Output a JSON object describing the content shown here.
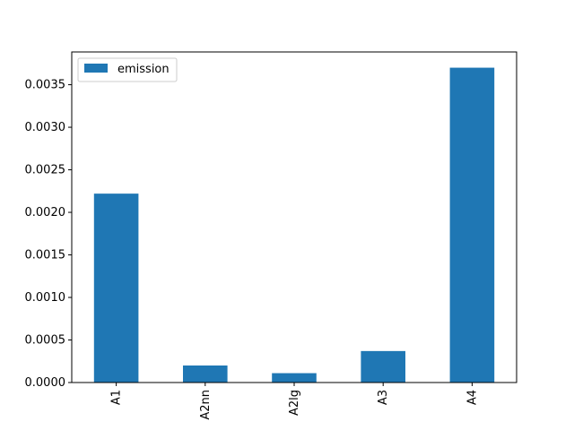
{
  "chart_data": {
    "type": "bar",
    "categories": [
      "A1",
      "A2nn",
      "A2lg",
      "A3",
      "A4"
    ],
    "series": [
      {
        "name": "emission",
        "values": [
          0.00222,
          0.0002,
          0.00011,
          0.00037,
          0.0037
        ]
      }
    ],
    "yticks": [
      "0.0000",
      "0.0005",
      "0.0010",
      "0.0015",
      "0.0020",
      "0.0025",
      "0.0030",
      "0.0035"
    ],
    "ytick_values": [
      0,
      0.0005,
      0.001,
      0.0015,
      0.002,
      0.0025,
      0.003,
      0.0035
    ],
    "ylim": [
      0,
      0.003885
    ],
    "legend_position": "top-left",
    "grid": false,
    "bar_color": "#1f77b4",
    "title": "",
    "xlabel": "",
    "ylabel": ""
  }
}
